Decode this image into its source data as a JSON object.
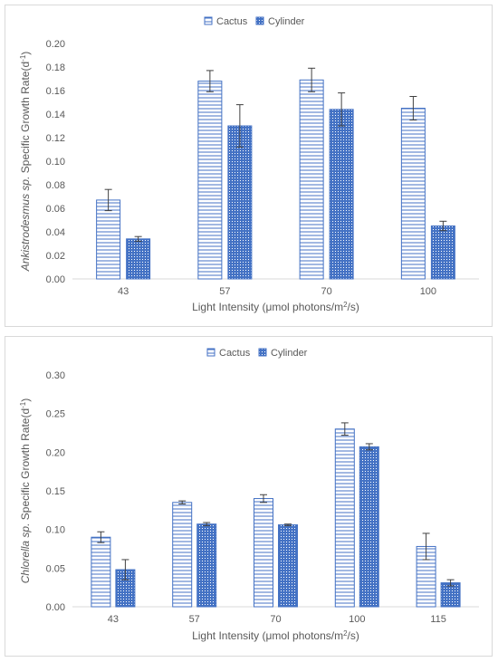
{
  "chart_data": [
    {
      "type": "bar",
      "ylabel_italic": "Ankistrodesmus sp.",
      "ylabel_rest": " Specific Growth Rate(d",
      "ylabel_sup": "-1",
      "ylabel_close": ")",
      "xlabel_main": "Light Intensity (μmol photons/m",
      "xlabel_sup": "2",
      "xlabel_end": "/s)",
      "categories": [
        "43",
        "57",
        "70",
        "100"
      ],
      "ylim": [
        0,
        0.2
      ],
      "yticks": [
        "0.00",
        "0.02",
        "0.04",
        "0.06",
        "0.08",
        "0.10",
        "0.12",
        "0.14",
        "0.16",
        "0.18",
        "0.20"
      ],
      "grid": false,
      "legend_position": "top",
      "series": [
        {
          "name": "Cactus",
          "pattern": "horizontal-lines",
          "values": [
            0.067,
            0.168,
            0.169,
            0.145
          ],
          "errors": [
            0.009,
            0.009,
            0.01,
            0.01
          ]
        },
        {
          "name": "Cylinder",
          "pattern": "dots",
          "values": [
            0.034,
            0.13,
            0.144,
            0.045
          ],
          "errors": [
            0.002,
            0.018,
            0.014,
            0.004
          ]
        }
      ]
    },
    {
      "type": "bar",
      "ylabel_italic": "Chlorella sp.",
      "ylabel_rest": " Specific Growth Rate(d",
      "ylabel_sup": "-1",
      "ylabel_close": ")",
      "xlabel_main": "Light Intensity (μmol photons/m",
      "xlabel_sup": "2",
      "xlabel_end": "/s)",
      "categories": [
        "43",
        "57",
        "70",
        "100",
        "115"
      ],
      "ylim": [
        0,
        0.3
      ],
      "yticks": [
        "0.00",
        "0.05",
        "0.10",
        "0.15",
        "0.20",
        "0.25",
        "0.30"
      ],
      "grid": false,
      "legend_position": "top",
      "series": [
        {
          "name": "Cactus",
          "pattern": "horizontal-lines",
          "values": [
            0.09,
            0.135,
            0.14,
            0.23,
            0.078
          ],
          "errors": [
            0.007,
            0.002,
            0.005,
            0.008,
            0.017
          ]
        },
        {
          "name": "Cylinder",
          "pattern": "dots",
          "values": [
            0.048,
            0.107,
            0.106,
            0.207,
            0.031
          ],
          "errors": [
            0.013,
            0.002,
            0.001,
            0.004,
            0.004
          ]
        }
      ]
    }
  ],
  "colors": {
    "bar_fill": "#4472c4",
    "cactus_line": "#4472c4",
    "axis": "#d9d9d9",
    "error_bar": "#404040",
    "text": "#595959",
    "border": "#d9d9d9"
  }
}
